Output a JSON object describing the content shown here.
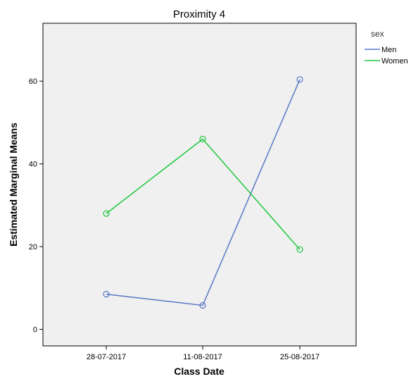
{
  "chart_data": {
    "type": "line",
    "title": "Proximity 4",
    "xlabel": "Class Date",
    "ylabel": "Estimated Marginal Means",
    "categories": [
      "28-07-2017",
      "11-08-2017",
      "25-08-2017"
    ],
    "y_ticks": [
      "0",
      "20",
      "40",
      "60"
    ],
    "ylim": [
      -4,
      74
    ],
    "grid": false,
    "legend": {
      "title": "sex",
      "placement": "top-right, outside plot"
    },
    "marker": "open-circle",
    "plot_background": "#f0f0f0",
    "series": [
      {
        "name": "Men",
        "color": "#5a78c8",
        "values": [
          8.5,
          5.8,
          60.4
        ]
      },
      {
        "name": "Women",
        "color": "#1fc73e",
        "values": [
          28.0,
          46.0,
          19.3
        ]
      }
    ]
  }
}
